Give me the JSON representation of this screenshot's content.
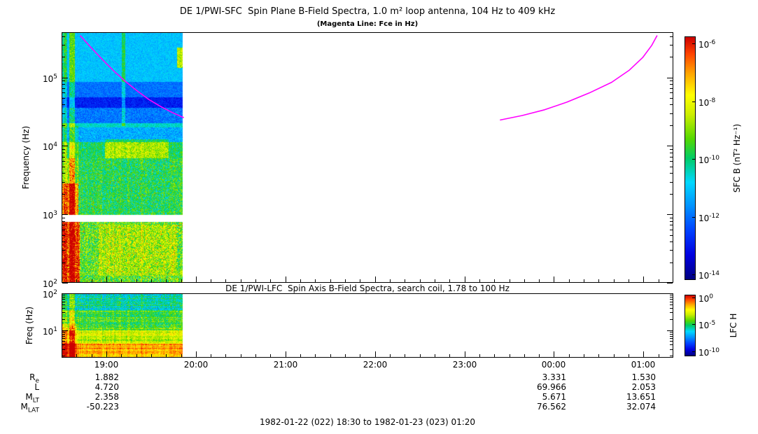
{
  "colors": {
    "background": "#ffffff",
    "frame": "#000000",
    "text": "#000000",
    "fce_line": "#ff00ff"
  },
  "colormap": [
    [
      0.0,
      "#000080"
    ],
    [
      0.1,
      "#0000e0"
    ],
    [
      0.2,
      "#0040ff"
    ],
    [
      0.3,
      "#0090ff"
    ],
    [
      0.4,
      "#00d8ff"
    ],
    [
      0.5,
      "#00cc66"
    ],
    [
      0.58,
      "#55d800"
    ],
    [
      0.68,
      "#ccee00"
    ],
    [
      0.76,
      "#ffff00"
    ],
    [
      0.85,
      "#ffa500"
    ],
    [
      0.93,
      "#ff4400"
    ],
    [
      1.0,
      "#cc0000"
    ]
  ],
  "time_axis": {
    "range_hours": [
      18.5,
      25.3333
    ],
    "ticks": [
      {
        "label": "19:00",
        "hour": 19
      },
      {
        "label": "20:00",
        "hour": 20
      },
      {
        "label": "21:00",
        "hour": 21
      },
      {
        "label": "22:00",
        "hour": 22
      },
      {
        "label": "23:00",
        "hour": 23
      },
      {
        "label": "00:00",
        "hour": 24
      },
      {
        "label": "01:00",
        "hour": 25
      }
    ]
  },
  "footer": "1982-01-22 (022) 18:30 to 1982-01-23 (023) 01:20",
  "ephemeris": {
    "column_hours": [
      19,
      24,
      25
    ],
    "rows": [
      {
        "main": "R",
        "sub": "e",
        "values": [
          "1.882",
          "3.331",
          "1.530"
        ]
      },
      {
        "main": "L",
        "sub": "",
        "values": [
          "4.720",
          "69.966",
          "2.053"
        ]
      },
      {
        "main": "M",
        "sub": "LT",
        "values": [
          "2.358",
          "5.671",
          "13.651"
        ]
      },
      {
        "main": "M",
        "sub": "LAT",
        "values": [
          "-50.223",
          "76.562",
          "32.074"
        ]
      }
    ]
  },
  "chart_data": [
    {
      "type": "heatmap",
      "panel": "SFC",
      "title": "DE 1/PWI-SFC  Spin Plane B-Field Spectra, 1.0 m² loop antenna, 104 Hz to 409 kHz",
      "subtitle": "(Magenta Line: Fce in Hz)",
      "xlabel": "",
      "ylabel": "Frequency (Hz)",
      "ylog_range": [
        2,
        5.66
      ],
      "yticks": [
        {
          "base": "10",
          "exp": "5",
          "log10": 5
        },
        {
          "base": "10",
          "exp": "4",
          "log10": 4
        },
        {
          "base": "10",
          "exp": "3",
          "log10": 3
        },
        {
          "base": "10",
          "exp": "2",
          "log10": 2
        }
      ],
      "data_time_range_hours": [
        18.5,
        19.85
      ],
      "colorbar": {
        "label": "SFC B (nT² Hz⁻¹)",
        "range_log10": [
          -15,
          -5.5
        ],
        "ticks": [
          {
            "base": "10",
            "exp": "-6",
            "frac": 0.029
          },
          {
            "base": "10",
            "exp": "-8",
            "frac": 0.267
          },
          {
            "base": "10",
            "exp": "-10",
            "frac": 0.503
          },
          {
            "base": "10",
            "exp": "-12",
            "frac": 0.741
          },
          {
            "base": "10",
            "exp": "-14",
            "frac": 0.977
          }
        ]
      },
      "fce_line_segments_hour_hz": [
        [
          [
            18.7,
            420000
          ],
          [
            18.82,
            280000
          ],
          [
            18.95,
            185000
          ],
          [
            19.08,
            125000
          ],
          [
            19.21,
            88000
          ],
          [
            19.34,
            64000
          ],
          [
            19.47,
            48000
          ],
          [
            19.6,
            38000
          ],
          [
            19.73,
            31000
          ],
          [
            19.86,
            26000
          ]
        ],
        [
          [
            23.4,
            24000
          ],
          [
            23.65,
            28000
          ],
          [
            23.9,
            34000
          ],
          [
            24.15,
            44000
          ],
          [
            24.4,
            60000
          ],
          [
            24.65,
            86000
          ],
          [
            24.85,
            130000
          ],
          [
            25.0,
            200000
          ],
          [
            25.1,
            300000
          ],
          [
            25.16,
            420000
          ]
        ]
      ],
      "bands": [
        {
          "lo": 4.95,
          "hi": 5.67,
          "v": 0.37,
          "n": 0.05
        },
        {
          "lo": 4.72,
          "hi": 4.95,
          "v": 0.26,
          "n": 0.05
        },
        {
          "lo": 4.56,
          "hi": 4.72,
          "v": 0.15,
          "n": 0.05
        },
        {
          "lo": 4.34,
          "hi": 4.56,
          "v": 0.27,
          "n": 0.07
        },
        {
          "lo": 4.28,
          "hi": 4.34,
          "v": 0.44,
          "n": 0.04
        },
        {
          "lo": 4.06,
          "hi": 4.28,
          "v": 0.34,
          "n": 0.08
        },
        {
          "lo": 3.82,
          "hi": 4.06,
          "v": 0.5,
          "n": 0.09
        },
        {
          "lo": 2.99,
          "hi": 3.82,
          "v": 0.52,
          "n": 0.12,
          "sparkle": 0.004
        },
        {
          "lo": 2.89,
          "hi": 2.99,
          "v": -1,
          "n": 0
        },
        {
          "lo": 2.0,
          "hi": 2.89,
          "v": 0.58,
          "n": 0.16,
          "sparkle": 0.012
        }
      ],
      "features": [
        {
          "t0": 0.0,
          "t1": 0.035,
          "lo": 2.0,
          "hi": 5.67,
          "dv": 0.1
        },
        {
          "t0": 0.01,
          "t1": 0.03,
          "lo": 2.0,
          "hi": 5.67,
          "dv": 0.08
        },
        {
          "t0": 0.055,
          "t1": 0.1,
          "lo": 2.0,
          "hi": 5.67,
          "dv": 0.22
        },
        {
          "t0": 0.1,
          "t1": 0.13,
          "lo": 2.0,
          "hi": 4.3,
          "dv": 0.08
        },
        {
          "t0": 0.0,
          "t1": 0.14,
          "lo": 2.0,
          "hi": 2.89,
          "dv": 0.32
        },
        {
          "t0": 0.0,
          "t1": 0.13,
          "lo": 2.99,
          "hi": 3.45,
          "dv": 0.26
        },
        {
          "t0": 0.03,
          "t1": 0.1,
          "lo": 2.99,
          "hi": 3.82,
          "dv": 0.12
        },
        {
          "t0": 0.35,
          "t1": 0.88,
          "lo": 3.82,
          "hi": 4.1,
          "dv": 0.16
        },
        {
          "t0": 0.3,
          "t1": 0.95,
          "lo": 2.1,
          "hi": 2.85,
          "dv": 0.08
        },
        {
          "t0": 0.49,
          "t1": 0.52,
          "lo": 4.3,
          "hi": 5.67,
          "dv": 0.15
        },
        {
          "t0": 0.95,
          "t1": 1.0,
          "lo": 5.15,
          "hi": 5.45,
          "dv": 0.3
        }
      ],
      "col_streak": {
        "below": 4.06,
        "amp": 0.08
      }
    },
    {
      "type": "heatmap",
      "panel": "LFC",
      "title": "DE 1/PWI-LFC  Spin Axis B-Field Spectra, search coil, 1.78 to 100 Hz",
      "xlabel": "",
      "ylabel": "Freq (Hz)",
      "ylog_range": [
        0.25,
        2
      ],
      "yticks": [
        {
          "base": "10",
          "exp": "2",
          "log10": 2
        },
        {
          "base": "10",
          "exp": "1",
          "log10": 1
        }
      ],
      "data_time_range_hours": [
        18.5,
        19.85
      ],
      "colorbar": {
        "label": "LFC H",
        "range_log10": [
          -12,
          0
        ],
        "ticks": [
          {
            "base": "10",
            "exp": "0",
            "frac": 0.05
          },
          {
            "base": "10",
            "exp": "-5",
            "frac": 0.48
          },
          {
            "base": "10",
            "exp": "-10",
            "frac": 0.92
          }
        ]
      },
      "bands": [
        {
          "lo": 1.55,
          "hi": 2.01,
          "v": 0.45,
          "n": 0.1
        },
        {
          "lo": 1.0,
          "hi": 1.55,
          "v": 0.55,
          "n": 0.1
        },
        {
          "lo": 0.62,
          "hi": 1.0,
          "v": 0.68,
          "n": 0.08
        },
        {
          "lo": 0.25,
          "hi": 0.62,
          "v": 0.84,
          "n": 0.06
        }
      ],
      "features": [
        {
          "t0": 0.0,
          "t1": 0.035,
          "lo": 0.25,
          "hi": 2.01,
          "dv": 0.1
        },
        {
          "t0": 0.055,
          "t1": 0.1,
          "lo": 0.25,
          "hi": 2.01,
          "dv": 0.18
        },
        {
          "t0": 0.0,
          "t1": 0.12,
          "lo": 0.25,
          "hi": 1.2,
          "dv": 0.12
        }
      ],
      "col_streak": {
        "below": 2.01,
        "amp": 0.1
      },
      "row_streak": {
        "amp": 0.14
      }
    }
  ]
}
